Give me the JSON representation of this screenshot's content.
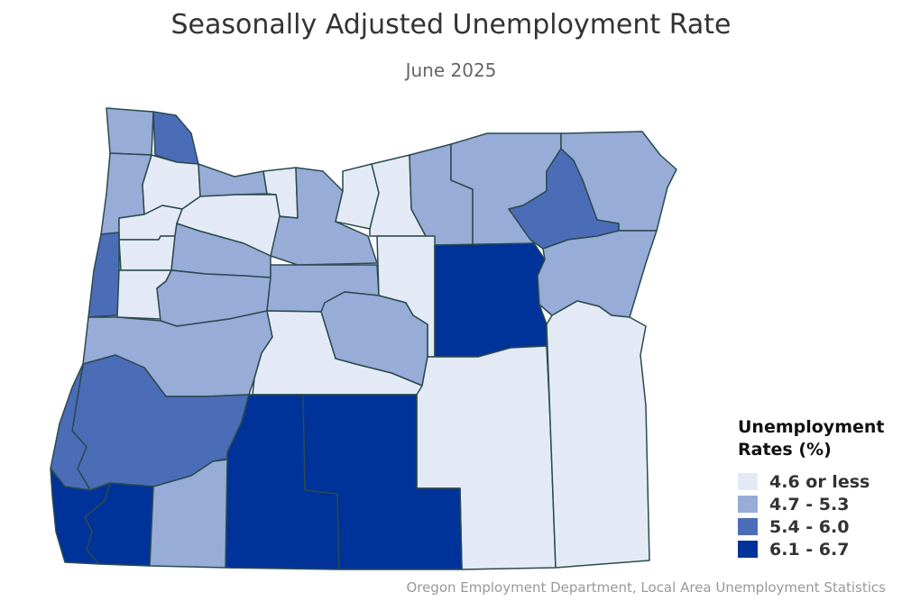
{
  "title": "Seasonally Adjusted Unemployment Rate",
  "subtitle": "June 2025",
  "legend": {
    "title_line1": "Unemployment",
    "title_line2": "Rates (%)",
    "items": [
      {
        "label": "4.6 or less",
        "color": "#e4eaf5"
      },
      {
        "label": "4.7 - 5.3",
        "color": "#97acd7"
      },
      {
        "label": "5.4 - 6.0",
        "color": "#4b6db8"
      },
      {
        "label": "6.1 - 6.7",
        "color": "#003399"
      }
    ]
  },
  "source": "Oregon Employment Department, Local Area Unemployment Statistics",
  "counties": [
    {
      "name": "clatsop",
      "bin": 1
    },
    {
      "name": "columbia",
      "bin": 2
    },
    {
      "name": "tillamook",
      "bin": 1
    },
    {
      "name": "washington",
      "bin": 0
    },
    {
      "name": "multnomah",
      "bin": 1
    },
    {
      "name": "hood-river",
      "bin": 0
    },
    {
      "name": "wasco",
      "bin": 1
    },
    {
      "name": "sherman",
      "bin": 0
    },
    {
      "name": "gilliam",
      "bin": 0
    },
    {
      "name": "morrow",
      "bin": 1
    },
    {
      "name": "umatilla",
      "bin": 1
    },
    {
      "name": "union",
      "bin": 2
    },
    {
      "name": "wallowa",
      "bin": 1
    },
    {
      "name": "yamhill",
      "bin": 0
    },
    {
      "name": "clackamas",
      "bin": 0
    },
    {
      "name": "polk",
      "bin": 0
    },
    {
      "name": "marion",
      "bin": 1
    },
    {
      "name": "lincoln",
      "bin": 2
    },
    {
      "name": "benton",
      "bin": 0
    },
    {
      "name": "linn",
      "bin": 1
    },
    {
      "name": "jefferson",
      "bin": 1
    },
    {
      "name": "wheeler",
      "bin": 0
    },
    {
      "name": "grant",
      "bin": 3
    },
    {
      "name": "baker",
      "bin": 1
    },
    {
      "name": "lane",
      "bin": 1
    },
    {
      "name": "crook",
      "bin": 1
    },
    {
      "name": "deschutes",
      "bin": 0
    },
    {
      "name": "harney",
      "bin": 0
    },
    {
      "name": "malheur",
      "bin": 0
    },
    {
      "name": "douglas",
      "bin": 2
    },
    {
      "name": "coos",
      "bin": 2
    },
    {
      "name": "klamath",
      "bin": 3
    },
    {
      "name": "lake",
      "bin": 3
    },
    {
      "name": "curry",
      "bin": 3
    },
    {
      "name": "josephine",
      "bin": 3
    },
    {
      "name": "jackson",
      "bin": 1
    }
  ]
}
